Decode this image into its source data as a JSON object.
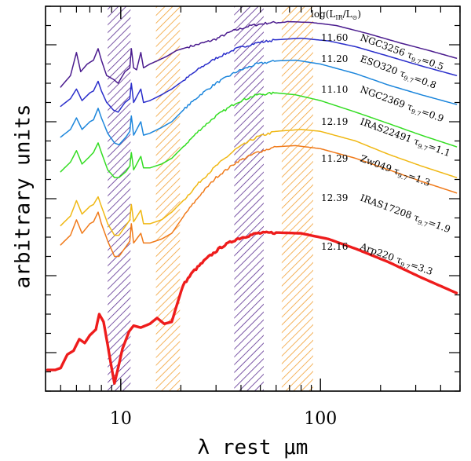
{
  "chart_data": {
    "type": "line",
    "title": "",
    "xlabel": "λ rest μm",
    "ylabel": "arbitrary units",
    "xscale": "log",
    "xlim": [
      4.2,
      500
    ],
    "ylim": [
      0,
      10
    ],
    "yticks_labeled": false,
    "xtick_labels": [
      {
        "value": 10,
        "label": "10"
      },
      {
        "value": 100,
        "label": "100"
      }
    ],
    "luminosity_header": "log(L",
    "luminosity_header_ir": "IR",
    "luminosity_header_sun": "/L",
    "luminosity_header_sun_sub": "⊙",
    "luminosity_header_close": ")",
    "tau_symbol": "τ",
    "tau_subscript": "9.7",
    "colors": {
      "purple_band": "#5a2d90",
      "orange_band": "#f2a033"
    },
    "shaded_bands": [
      {
        "x0": 8.6,
        "x1": 11.2,
        "color": "purple"
      },
      {
        "x0": 15.0,
        "x1": 19.8,
        "color": "orange"
      },
      {
        "x0": 37.0,
        "x1": 52.0,
        "color": "purple"
      },
      {
        "x0": 64.0,
        "x1": 92.0,
        "color": "orange"
      }
    ],
    "series": [
      {
        "name": "NGC3256",
        "log_lir": "11.60",
        "tau": "0.5",
        "color": "#4a1b8e",
        "width": 1.5,
        "points": [
          [
            5.0,
            7.9
          ],
          [
            5.6,
            8.2
          ],
          [
            6.0,
            8.8
          ],
          [
            6.3,
            8.3
          ],
          [
            6.8,
            8.5
          ],
          [
            7.3,
            8.6
          ],
          [
            7.7,
            8.9
          ],
          [
            8.0,
            8.6
          ],
          [
            8.5,
            8.2
          ],
          [
            9.2,
            8.1
          ],
          [
            9.7,
            8.0
          ],
          [
            10.5,
            8.3
          ],
          [
            11.1,
            8.4
          ],
          [
            11.3,
            8.9
          ],
          [
            11.6,
            8.4
          ],
          [
            12.0,
            8.35
          ],
          [
            12.6,
            8.8
          ],
          [
            13.0,
            8.4
          ],
          [
            14.0,
            8.5
          ],
          [
            15.5,
            8.6
          ],
          [
            17.0,
            8.7
          ],
          [
            19.0,
            8.85
          ],
          [
            22.0,
            8.95
          ],
          [
            26.0,
            9.05
          ],
          [
            30.0,
            9.15
          ],
          [
            36.0,
            9.35
          ],
          [
            45.0,
            9.5
          ],
          [
            55.0,
            9.57
          ],
          [
            70.0,
            9.6
          ],
          [
            90.0,
            9.58
          ],
          [
            120.0,
            9.5
          ],
          [
            170.0,
            9.3
          ],
          [
            250.0,
            9.05
          ],
          [
            350.0,
            8.85
          ],
          [
            480.0,
            8.65
          ]
        ]
      },
      {
        "name": "ESO320",
        "log_lir": "11.20",
        "tau": "0.8",
        "color": "#2a2ecb",
        "width": 1.5,
        "points": [
          [
            5.0,
            7.4
          ],
          [
            5.6,
            7.6
          ],
          [
            6.0,
            7.85
          ],
          [
            6.4,
            7.55
          ],
          [
            7.0,
            7.75
          ],
          [
            7.3,
            7.8
          ],
          [
            7.7,
            8.05
          ],
          [
            8.0,
            7.8
          ],
          [
            8.5,
            7.5
          ],
          [
            9.2,
            7.3
          ],
          [
            9.7,
            7.25
          ],
          [
            10.5,
            7.5
          ],
          [
            11.1,
            7.6
          ],
          [
            11.3,
            8.0
          ],
          [
            11.6,
            7.5
          ],
          [
            12.6,
            7.85
          ],
          [
            13.0,
            7.5
          ],
          [
            14.0,
            7.55
          ],
          [
            16.0,
            7.7
          ],
          [
            18.0,
            7.85
          ],
          [
            21.0,
            8.1
          ],
          [
            25.0,
            8.4
          ],
          [
            30.0,
            8.65
          ],
          [
            38.0,
            8.9
          ],
          [
            48.0,
            9.05
          ],
          [
            60.0,
            9.13
          ],
          [
            80.0,
            9.17
          ],
          [
            110.0,
            9.1
          ],
          [
            150.0,
            8.95
          ],
          [
            220.0,
            8.7
          ],
          [
            320.0,
            8.45
          ],
          [
            480.0,
            8.2
          ]
        ]
      },
      {
        "name": "NGC2369",
        "log_lir": "11.10",
        "tau": "0.9",
        "color": "#1c86dc",
        "width": 1.5,
        "points": [
          [
            5.0,
            6.6
          ],
          [
            5.6,
            6.8
          ],
          [
            6.0,
            7.1
          ],
          [
            6.4,
            6.8
          ],
          [
            7.0,
            7.0
          ],
          [
            7.3,
            7.05
          ],
          [
            7.7,
            7.35
          ],
          [
            8.0,
            7.1
          ],
          [
            8.6,
            6.7
          ],
          [
            9.3,
            6.45
          ],
          [
            9.8,
            6.4
          ],
          [
            10.6,
            6.6
          ],
          [
            11.1,
            6.75
          ],
          [
            11.3,
            7.15
          ],
          [
            11.6,
            6.65
          ],
          [
            12.6,
            7.0
          ],
          [
            13.0,
            6.65
          ],
          [
            14.0,
            6.7
          ],
          [
            16.0,
            6.85
          ],
          [
            18.0,
            7.0
          ],
          [
            21.0,
            7.35
          ],
          [
            25.0,
            7.7
          ],
          [
            30.0,
            8.0
          ],
          [
            38.0,
            8.3
          ],
          [
            48.0,
            8.5
          ],
          [
            60.0,
            8.58
          ],
          [
            75.0,
            8.6
          ],
          [
            100.0,
            8.5
          ],
          [
            150.0,
            8.25
          ],
          [
            220.0,
            7.95
          ],
          [
            320.0,
            7.7
          ],
          [
            480.0,
            7.45
          ]
        ]
      },
      {
        "name": "IRAS22491",
        "log_lir": "12.19",
        "tau": "1.1",
        "color": "#33dd22",
        "width": 1.5,
        "points": [
          [
            5.0,
            5.7
          ],
          [
            5.6,
            5.95
          ],
          [
            6.0,
            6.25
          ],
          [
            6.4,
            5.9
          ],
          [
            7.0,
            6.1
          ],
          [
            7.3,
            6.2
          ],
          [
            7.7,
            6.45
          ],
          [
            8.0,
            6.2
          ],
          [
            8.6,
            5.75
          ],
          [
            9.3,
            5.55
          ],
          [
            9.8,
            5.55
          ],
          [
            10.6,
            5.7
          ],
          [
            11.1,
            5.85
          ],
          [
            11.3,
            6.2
          ],
          [
            11.6,
            5.75
          ],
          [
            12.6,
            6.1
          ],
          [
            13.0,
            5.8
          ],
          [
            14.0,
            5.8
          ],
          [
            16.0,
            5.9
          ],
          [
            18.0,
            6.05
          ],
          [
            21.0,
            6.4
          ],
          [
            25.0,
            6.8
          ],
          [
            30.0,
            7.15
          ],
          [
            38.0,
            7.5
          ],
          [
            48.0,
            7.7
          ],
          [
            60.0,
            7.75
          ],
          [
            75.0,
            7.7
          ],
          [
            100.0,
            7.55
          ],
          [
            150.0,
            7.25
          ],
          [
            220.0,
            6.95
          ],
          [
            320.0,
            6.65
          ],
          [
            480.0,
            6.35
          ]
        ]
      },
      {
        "name": "Zw049",
        "log_lir": "11.29",
        "tau": "1.3",
        "color": "#f0b814",
        "width": 1.5,
        "points": [
          [
            5.0,
            4.3
          ],
          [
            5.6,
            4.55
          ],
          [
            6.0,
            4.95
          ],
          [
            6.4,
            4.6
          ],
          [
            7.0,
            4.8
          ],
          [
            7.3,
            4.85
          ],
          [
            7.7,
            5.05
          ],
          [
            8.0,
            4.8
          ],
          [
            8.6,
            4.35
          ],
          [
            9.3,
            4.05
          ],
          [
            9.8,
            4.05
          ],
          [
            10.6,
            4.3
          ],
          [
            11.1,
            4.45
          ],
          [
            11.3,
            4.85
          ],
          [
            11.6,
            4.4
          ],
          [
            12.6,
            4.7
          ],
          [
            13.0,
            4.35
          ],
          [
            14.0,
            4.35
          ],
          [
            16.0,
            4.45
          ],
          [
            18.0,
            4.65
          ],
          [
            21.0,
            5.0
          ],
          [
            25.0,
            5.45
          ],
          [
            30.0,
            5.85
          ],
          [
            38.0,
            6.3
          ],
          [
            48.0,
            6.6
          ],
          [
            60.0,
            6.75
          ],
          [
            80.0,
            6.8
          ],
          [
            100.0,
            6.75
          ],
          [
            150.0,
            6.5
          ],
          [
            220.0,
            6.15
          ],
          [
            320.0,
            5.85
          ],
          [
            480.0,
            5.55
          ]
        ]
      },
      {
        "name": "IRAS17208",
        "log_lir": "12.39",
        "tau": "1.9",
        "color": "#f07a1a",
        "width": 1.5,
        "points": [
          [
            5.0,
            3.8
          ],
          [
            5.6,
            4.05
          ],
          [
            6.0,
            4.45
          ],
          [
            6.4,
            4.1
          ],
          [
            7.0,
            4.35
          ],
          [
            7.3,
            4.4
          ],
          [
            7.7,
            4.65
          ],
          [
            8.0,
            4.35
          ],
          [
            8.6,
            3.9
          ],
          [
            9.3,
            3.5
          ],
          [
            9.8,
            3.5
          ],
          [
            10.6,
            3.75
          ],
          [
            11.1,
            3.9
          ],
          [
            11.3,
            4.35
          ],
          [
            11.6,
            3.85
          ],
          [
            12.6,
            4.1
          ],
          [
            13.0,
            3.85
          ],
          [
            14.0,
            3.85
          ],
          [
            16.0,
            3.95
          ],
          [
            18.0,
            4.1
          ],
          [
            21.0,
            4.6
          ],
          [
            25.0,
            5.1
          ],
          [
            30.0,
            5.55
          ],
          [
            38.0,
            5.95
          ],
          [
            48.0,
            6.2
          ],
          [
            60.0,
            6.35
          ],
          [
            75.0,
            6.38
          ],
          [
            100.0,
            6.3
          ],
          [
            150.0,
            6.05
          ],
          [
            220.0,
            5.75
          ],
          [
            320.0,
            5.45
          ],
          [
            480.0,
            5.15
          ]
        ]
      },
      {
        "name": "Arp220",
        "log_lir": "12.16",
        "tau": "3.3",
        "color": "#ee1c1c",
        "width": 3.4,
        "points": [
          [
            4.3,
            0.55
          ],
          [
            4.7,
            0.55
          ],
          [
            5.0,
            0.6
          ],
          [
            5.4,
            0.95
          ],
          [
            5.8,
            1.05
          ],
          [
            6.2,
            1.35
          ],
          [
            6.6,
            1.25
          ],
          [
            7.0,
            1.45
          ],
          [
            7.5,
            1.6
          ],
          [
            7.8,
            2.0
          ],
          [
            8.2,
            1.8
          ],
          [
            8.6,
            1.2
          ],
          [
            9.0,
            0.6
          ],
          [
            9.3,
            0.2
          ],
          [
            9.6,
            0.5
          ],
          [
            10.2,
            1.1
          ],
          [
            11.0,
            1.55
          ],
          [
            11.6,
            1.7
          ],
          [
            12.6,
            1.65
          ],
          [
            14.0,
            1.75
          ],
          [
            15.2,
            1.9
          ],
          [
            16.5,
            1.75
          ],
          [
            18.0,
            1.8
          ],
          [
            19.0,
            2.2
          ],
          [
            20.5,
            2.75
          ],
          [
            23.0,
            3.1
          ],
          [
            27.0,
            3.45
          ],
          [
            32.0,
            3.75
          ],
          [
            38.0,
            3.95
          ],
          [
            48.0,
            4.1
          ],
          [
            60.0,
            4.12
          ],
          [
            80.0,
            4.1
          ],
          [
            110.0,
            3.95
          ],
          [
            150.0,
            3.7
          ],
          [
            220.0,
            3.35
          ],
          [
            320.0,
            2.95
          ],
          [
            480.0,
            2.55
          ]
        ]
      }
    ]
  }
}
